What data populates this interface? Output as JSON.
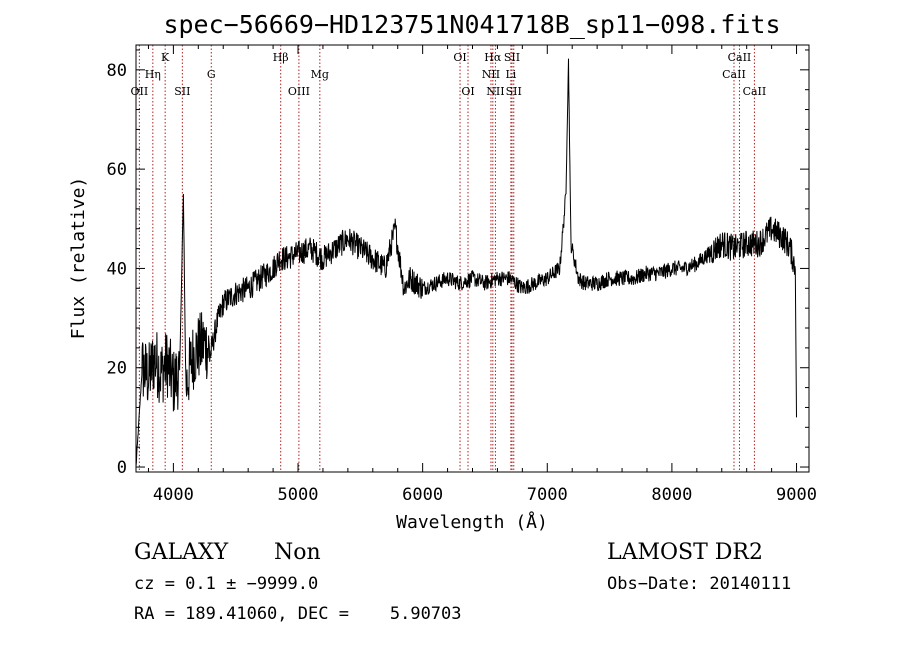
{
  "chart_data": {
    "type": "line",
    "title": "spec−56669−HD123751N041718B_sp11−098.fits",
    "xlabel": "Wavelength (Å)",
    "ylabel": "Flux (relative)",
    "xlim": [
      3700,
      9100
    ],
    "ylim": [
      -1,
      85
    ],
    "xticks": [
      4000,
      5000,
      6000,
      7000,
      8000,
      9000
    ],
    "yticks": [
      0,
      20,
      40,
      60,
      80
    ],
    "grid": false,
    "series": [
      {
        "x": [
          3700,
          3750,
          3800,
          3850,
          3900,
          3950,
          4000,
          4050,
          4080,
          4100,
          4150,
          4200,
          4250,
          4300,
          4350,
          4400,
          4500,
          4600,
          4700,
          4800,
          4850,
          4900,
          5000,
          5100,
          5200,
          5300,
          5400,
          5500,
          5600,
          5700,
          5780,
          5850,
          5900,
          6000,
          6100,
          6200,
          6300,
          6400,
          6500,
          6600,
          6700,
          6800,
          6900,
          7000,
          7100,
          7150,
          7170,
          7190,
          7250,
          7300,
          7400,
          7500,
          7600,
          7700,
          7800,
          7900,
          8000,
          8100,
          8200,
          8300,
          8400,
          8500,
          8600,
          8700,
          8800,
          8900,
          8950,
          8990,
          9000
        ],
        "y": [
          0,
          20,
          18,
          22,
          19,
          21,
          17,
          19,
          55,
          16,
          22,
          24,
          25,
          23,
          29,
          33,
          35,
          36,
          38,
          40,
          42,
          42,
          43,
          44,
          42,
          44,
          46,
          44,
          42,
          40,
          48,
          36,
          38,
          36,
          37,
          38,
          37,
          38,
          37,
          38,
          38,
          36,
          37,
          38,
          40,
          55,
          82,
          45,
          38,
          37,
          37,
          38,
          38,
          38,
          39,
          39,
          40,
          40,
          41,
          43,
          45,
          44,
          45,
          45,
          48,
          46,
          44,
          40,
          10
        ]
      }
    ],
    "annotations": [
      {
        "label": "OII",
        "x": 3727,
        "row": 3
      },
      {
        "label": "Hη",
        "x": 3835,
        "row": 2
      },
      {
        "label": "K",
        "x": 3934,
        "row": 1
      },
      {
        "label": "SII",
        "x": 4072,
        "row": 3
      },
      {
        "label": "G",
        "x": 4304,
        "row": 2
      },
      {
        "label": "Hβ",
        "x": 4861,
        "row": 1
      },
      {
        "label": "OIII",
        "x": 5007,
        "row": 3
      },
      {
        "label": "Mg",
        "x": 5175,
        "row": 2
      },
      {
        "label": "OI",
        "x": 6300,
        "row": 1
      },
      {
        "label": "OI",
        "x": 6364,
        "row": 3
      },
      {
        "label": "Hα",
        "x": 6563,
        "row": 1
      },
      {
        "label": "NII",
        "x": 6548,
        "row": 2
      },
      {
        "label": "NII",
        "x": 6584,
        "row": 3
      },
      {
        "label": "SII",
        "x": 6717,
        "row": 1
      },
      {
        "label": "Li",
        "x": 6708,
        "row": 2
      },
      {
        "label": "SII",
        "x": 6731,
        "row": 3
      },
      {
        "label": "CaII",
        "x": 8498,
        "row": 2
      },
      {
        "label": "CaII",
        "x": 8542,
        "row": 1
      },
      {
        "label": "CaII",
        "x": 8662,
        "row": 3
      }
    ],
    "line_color": "#000000",
    "marker_color": "#b22222"
  },
  "footer": {
    "class_label": "GALAXY",
    "subclass_label": "Non",
    "survey": "LAMOST DR2",
    "cz": "cz = 0.1 ± −9999.0",
    "obs_date": "Obs−Date: 20140111",
    "radec": "RA = 189.41060, DEC =    5.90703"
  }
}
